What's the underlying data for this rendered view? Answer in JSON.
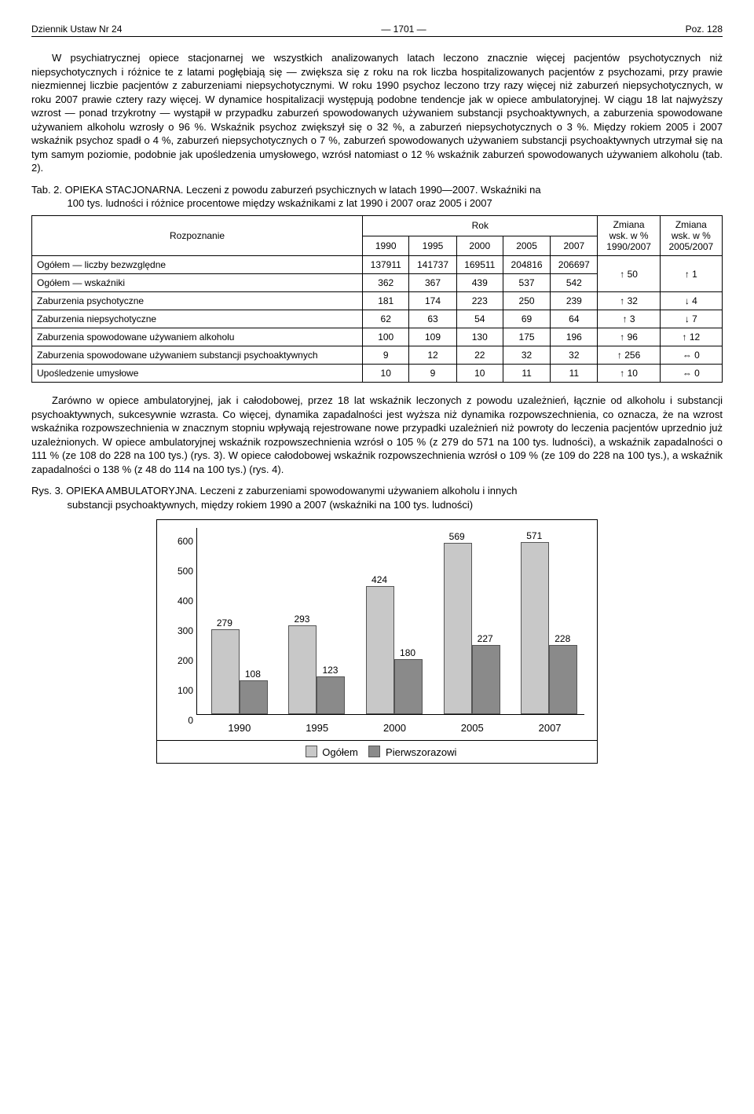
{
  "header": {
    "left": "Dziennik Ustaw Nr 24",
    "center": "— 1701 —",
    "right": "Poz. 128"
  },
  "para1": "W psychiatrycznej opiece stacjonarnej we wszystkich analizowanych latach leczono znacznie więcej pacjentów psychotycznych niż niepsychotycznych i różnice te z latami pogłębiają się — zwiększa się z roku na rok liczba hospitalizowanych pacjentów z psychozami, przy prawie niezmiennej liczbie pacjentów z zaburzeniami niepsychotycznymi. W roku 1990 psychoz leczono trzy razy więcej niż zaburzeń niepsychotycznych, w roku 2007 prawie cztery razy więcej. W dynamice hospitalizacji występują podobne tendencje jak w opiece ambulatoryjnej. W ciągu 18 lat najwyższy wzrost — ponad trzykrotny — wystąpił w przypadku zaburzeń spowodowanych używaniem substancji psychoaktywnych, a zaburzenia spowodowane używaniem alkoholu wzrosły o 96 %. Wskaźnik psychoz zwiększył się o 32 %, a zaburzeń niepsychotycznych o 3 %. Między rokiem 2005 i 2007 wskaźnik psychoz spadł o 4 %, zaburzeń niepsychotycznych o 7 %, zaburzeń spowodowanych używaniem substancji psychoaktywnych utrzymał się na tym samym poziomie, podobnie jak upośledzenia umysłowego, wzrósł natomiast o 12 % wskaźnik zaburzeń spowodowanych używaniem alkoholu (tab. 2).",
  "tab2_caption_a": "Tab. 2. OPIEKA STACJONARNA. Leczeni z powodu zaburzeń psychicznych w latach 1990—2007. Wskaźniki na",
  "tab2_caption_b": "100 tys. ludności i różnice procentowe między wskaźnikami z lat 1990 i 2007 oraz 2005 i 2007",
  "table": {
    "head": {
      "rozpoznanie": "Rozpoznanie",
      "rok": "Rok",
      "years": [
        "1990",
        "1995",
        "2000",
        "2005",
        "2007"
      ],
      "zm1_a": "Zmiana",
      "zm1_b": "wsk. w %",
      "zm1_c": "1990/2007",
      "zm2_a": "Zmiana",
      "zm2_b": "wsk. w %",
      "zm2_c": "2005/2007"
    },
    "rows": [
      {
        "label": "Ogółem — liczby bezwzględne",
        "v": [
          "137911",
          "141737",
          "169511",
          "204816",
          "206697"
        ],
        "z1": "↑ 50",
        "z2": "↑ 1",
        "merge": true
      },
      {
        "label": "Ogółem — wskaźniki",
        "v": [
          "362",
          "367",
          "439",
          "537",
          "542"
        ],
        "merge_cont": true
      },
      {
        "label": "Zaburzenia psychotyczne",
        "v": [
          "181",
          "174",
          "223",
          "250",
          "239"
        ],
        "z1": "↑ 32",
        "z2": "↓ 4"
      },
      {
        "label": "Zaburzenia niepsychotyczne",
        "v": [
          "62",
          "63",
          "54",
          "69",
          "64"
        ],
        "z1": "↑ 3",
        "z2": "↓ 7"
      },
      {
        "label": "Zaburzenia spowodowane używaniem alkoholu",
        "v": [
          "100",
          "109",
          "130",
          "175",
          "196"
        ],
        "z1": "↑ 96",
        "z2": "↑ 12"
      },
      {
        "label": "Zaburzenia spowodowane używaniem substancji psychoaktywnych",
        "v": [
          "9",
          "12",
          "22",
          "32",
          "32"
        ],
        "z1": "↑ 256",
        "z2": "⇔ 0"
      },
      {
        "label": "Upośledzenie umysłowe",
        "v": [
          "10",
          "9",
          "10",
          "11",
          "11"
        ],
        "z1": "↑ 10",
        "z2": "⇔ 0"
      }
    ]
  },
  "para2": "Zarówno w opiece ambulatoryjnej, jak i całodobowej, przez 18 lat wskaźnik leczonych z powodu uzależnień, łącznie od alkoholu i substancji psychoaktywnych, sukcesywnie wzrasta. Co więcej, dynamika zapadalności jest wyższa niż dynamika rozpowszechnienia, co oznacza, że na wzrost wskaźnika rozpowszechnienia w znacznym stopniu wpływają rejestrowane nowe przypadki uzależnień niż powroty do leczenia pacjentów uprzednio już uzależnionych. W opiece ambulatoryjnej wskaźnik rozpowszechnienia wzrósł o 105 % (z 279 do 571 na 100 tys. ludności), a wskaźnik zapadalności o 111 % (ze 108 do 228 na 100 tys.) (rys. 3). W opiece całodobowej wskaźnik rozpowszechnienia wzrósł o 109 % (ze 109 do 228 na 100 tys.), a wskaźnik zapadalności o 138 % (z 48 do 114 na 100 tys.) (rys. 4).",
  "rys3_caption_a": "Rys. 3. OPIEKA AMBULATORYJNA. Leczeni z zaburzeniami spowodowanymi używaniem alkoholu i innych",
  "rys3_caption_b": "substancji psychoaktywnych, między rokiem 1990 a 2007 (wskaźniki na 100 tys. ludności)",
  "chart": {
    "type": "grouped-bar",
    "ymax": 600,
    "yticks": [
      0,
      100,
      200,
      300,
      400,
      500,
      600
    ],
    "categories": [
      "1990",
      "1995",
      "2000",
      "2005",
      "2007"
    ],
    "series": [
      {
        "name": "Ogółem",
        "color": "#c8c8c8",
        "values": [
          279,
          293,
          424,
          569,
          571
        ]
      },
      {
        "name": "Pierwszorazowi",
        "color": "#8a8a8a",
        "values": [
          108,
          123,
          180,
          227,
          228
        ]
      }
    ],
    "group_left_pct": [
      2,
      22,
      42,
      62,
      82
    ],
    "legend": {
      "s1": "Ogółem",
      "s2": "Pierwszorazowi"
    }
  }
}
